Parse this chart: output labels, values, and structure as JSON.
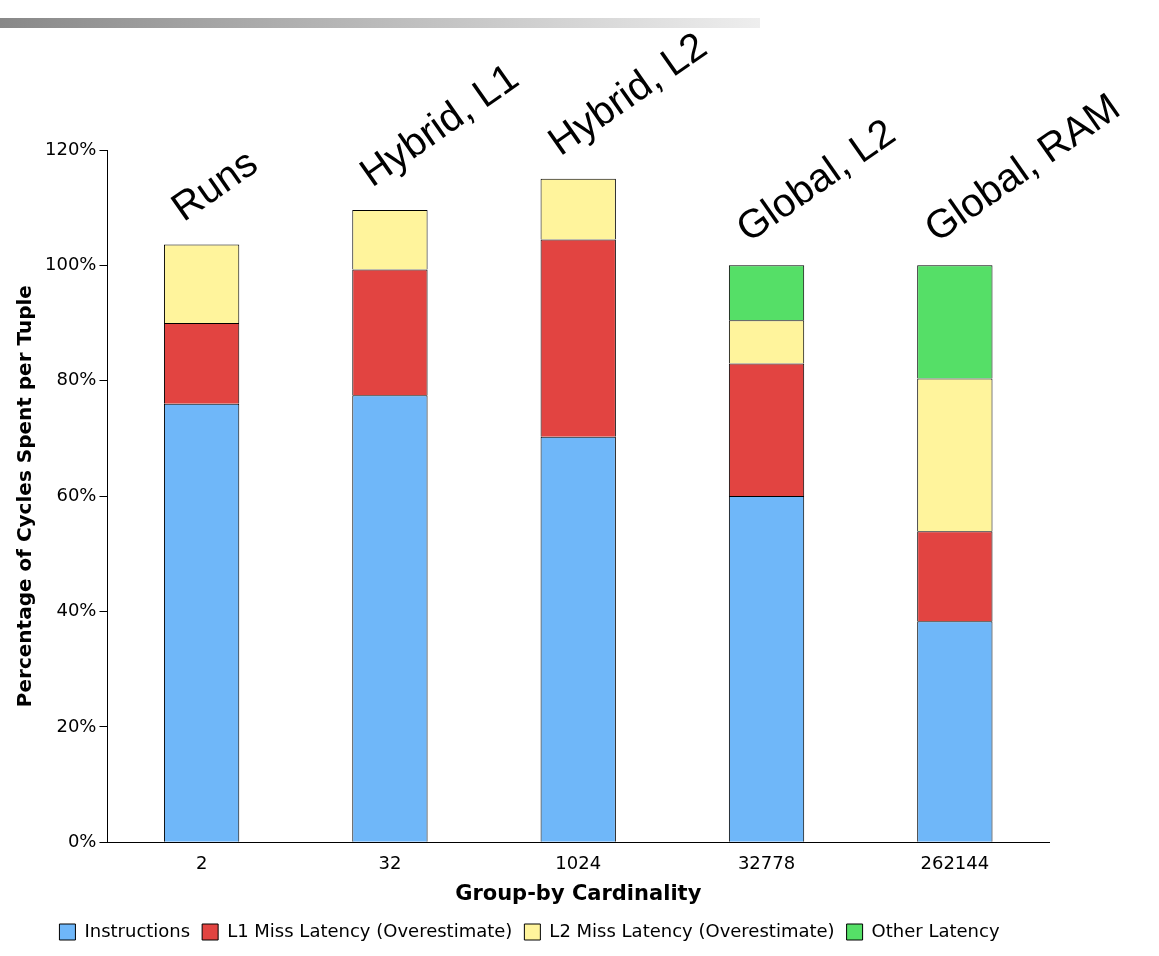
{
  "chart_data": {
    "type": "bar",
    "stacked": true,
    "xlabel": "Group-by Cardinality",
    "ylabel": "Percentage of Cycles Spent per Tuple",
    "categories": [
      "2",
      "32",
      "1024",
      "32778",
      "262144"
    ],
    "series": [
      {
        "name": "Instructions",
        "color": "#6fb7f9",
        "values": [
          76,
          77.5,
          70.3,
          60,
          38.3
        ]
      },
      {
        "name": "L1 Miss Latency (Overestimate)",
        "color": "#e24441",
        "values": [
          14,
          21.8,
          34.2,
          23,
          15.6
        ]
      },
      {
        "name": "L2 Miss Latency (Overestimate)",
        "color": "#fff49c",
        "values": [
          13.6,
          10.3,
          10.5,
          7.5,
          26.5
        ]
      },
      {
        "name": "Other Latency",
        "color": "#55df67",
        "values": [
          0,
          0,
          0,
          9.5,
          19.6
        ]
      }
    ],
    "ylim": [
      0,
      120
    ],
    "yticks": [
      {
        "value": 0,
        "label": "0%"
      },
      {
        "value": 20,
        "label": "20%"
      },
      {
        "value": 40,
        "label": "40%"
      },
      {
        "value": 60,
        "label": "60%"
      },
      {
        "value": 80,
        "label": "80%"
      },
      {
        "value": 100,
        "label": "100%"
      },
      {
        "value": 120,
        "label": "120%"
      }
    ],
    "grid": false,
    "legend": "bottom",
    "annotations": [
      "Runs",
      "Hybrid, L1",
      "Hybrid, L2",
      "Global, L2",
      "Global, RAM"
    ]
  }
}
